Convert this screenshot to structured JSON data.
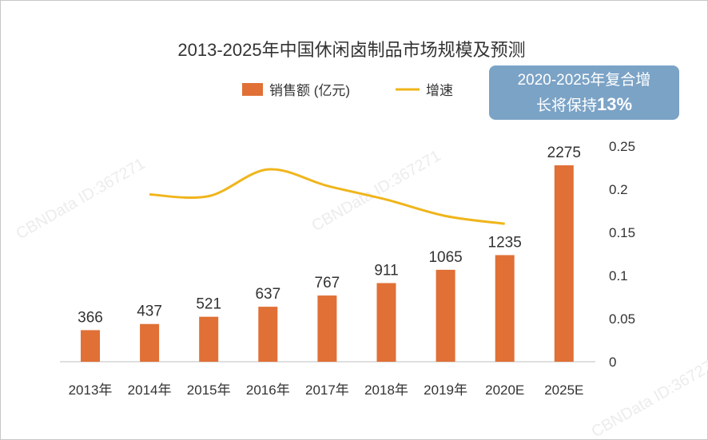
{
  "watermark": "CBNData ID:367271",
  "badge": {
    "line1": "2020-2025年复合增",
    "line2_prefix": "长将保持",
    "line2_value": "13%"
  },
  "colors": {
    "bar": "#e07036",
    "line": "#f0b51b",
    "badge": "#7ba3c6",
    "text": "#333333"
  },
  "chart_data": {
    "type": "bar",
    "title": "2013-2025年中国休闲卤制品市场规模及预测",
    "categories": [
      "2013年",
      "2014年",
      "2015年",
      "2016年",
      "2017年",
      "2018年",
      "2019年",
      "2020E",
      "2025E"
    ],
    "series": [
      {
        "name": "销售额 (亿元)",
        "type": "bar",
        "axis": "left",
        "values": [
          366,
          437,
          521,
          637,
          767,
          911,
          1065,
          1235,
          2275
        ]
      },
      {
        "name": "增速",
        "type": "line",
        "axis": "right",
        "values": [
          null,
          0.194,
          0.192,
          0.223,
          0.204,
          0.188,
          0.169,
          0.16,
          null
        ]
      }
    ],
    "left_ylim": [
      0,
      2500
    ],
    "right_ylim": [
      0,
      0.25
    ],
    "right_ticks": [
      "0",
      "0.05",
      "0.1",
      "0.15",
      "0.2",
      "0.25"
    ],
    "legend_position": "top",
    "grid": false
  }
}
